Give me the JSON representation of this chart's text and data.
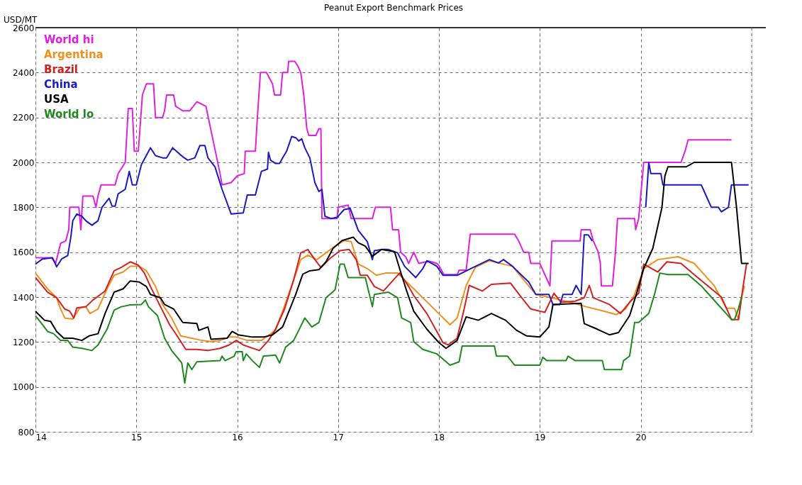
{
  "chart_data": {
    "type": "line",
    "title": "Peanut Export Benchmark Prices",
    "ylabel": "USD/MT",
    "xlim": [
      14,
      21.1
    ],
    "xticks": [
      14,
      15,
      16,
      17,
      18,
      19,
      20
    ],
    "ylim": [
      800,
      2600
    ],
    "yticks": [
      800,
      1000,
      1200,
      1400,
      1600,
      1800,
      2000,
      2200,
      2400,
      2600
    ],
    "grid": true,
    "legend": "top left",
    "marker": "none",
    "line_style": "solid",
    "series": [
      {
        "name": "World hi",
        "color": "#e020e0",
        "x": [
          14.0,
          14.16,
          14.2,
          14.25,
          14.3,
          14.33,
          14.34,
          14.43,
          14.45,
          14.47,
          14.57,
          14.6,
          14.62,
          14.65,
          14.79,
          14.82,
          14.89,
          14.92,
          14.96,
          14.98,
          15.02,
          15.06,
          15.1,
          15.17,
          15.19,
          15.26,
          15.28,
          15.3,
          15.37,
          15.39,
          15.46,
          15.53,
          15.6,
          15.69,
          15.76,
          15.83,
          15.85,
          15.94,
          16.0,
          16.07,
          16.08,
          16.18,
          16.2,
          16.23,
          16.29,
          16.35,
          16.37,
          16.43,
          16.45,
          16.5,
          16.51,
          16.57,
          16.6,
          16.63,
          16.66,
          16.69,
          16.71,
          16.78,
          16.81,
          16.83,
          16.84,
          16.99,
          17.0,
          17.1,
          17.13,
          17.34,
          17.37,
          17.52,
          17.54,
          17.6,
          17.62,
          17.67,
          17.7,
          17.75,
          17.8,
          17.9,
          17.98,
          18.0,
          18.05,
          18.18,
          18.2,
          18.27,
          18.29,
          18.31,
          18.75,
          18.79,
          18.84,
          18.89,
          18.91,
          19.0,
          19.05,
          19.1,
          19.12,
          19.4,
          19.41,
          19.5,
          19.53,
          19.58,
          19.6,
          19.61,
          19.72,
          19.75,
          19.77,
          19.94,
          19.95,
          19.98,
          20.03,
          20.4,
          20.44,
          20.47,
          20.9
        ],
        "values": [
          1575,
          1575,
          1550,
          1640,
          1650,
          1700,
          1800,
          1800,
          1700,
          1850,
          1850,
          1800,
          1850,
          1900,
          1900,
          1950,
          2000,
          2240,
          2240,
          2050,
          2050,
          2300,
          2350,
          2350,
          2200,
          2200,
          2230,
          2300,
          2300,
          2250,
          2230,
          2230,
          2270,
          2250,
          2100,
          1950,
          1900,
          1910,
          1940,
          1950,
          2050,
          2050,
          2200,
          2400,
          2400,
          2350,
          2300,
          2300,
          2400,
          2400,
          2450,
          2450,
          2430,
          2400,
          2300,
          2150,
          2120,
          2120,
          2150,
          2150,
          1750,
          1750,
          1800,
          1810,
          1750,
          1750,
          1800,
          1800,
          1700,
          1700,
          1600,
          1580,
          1550,
          1600,
          1550,
          1560,
          1550,
          1540,
          1500,
          1500,
          1520,
          1520,
          1600,
          1680,
          1680,
          1650,
          1600,
          1600,
          1550,
          1550,
          1500,
          1450,
          1650,
          1650,
          1700,
          1700,
          1650,
          1600,
          1550,
          1450,
          1450,
          1600,
          1750,
          1750,
          1700,
          1750,
          2000,
          2000,
          2050,
          2100,
          2100
        ]
      },
      {
        "name": "Argentina",
        "color": "#f0901e",
        "x": [
          14.0,
          14.12,
          14.21,
          14.24,
          14.29,
          14.37,
          14.44,
          14.5,
          14.54,
          14.62,
          14.71,
          14.78,
          14.87,
          14.94,
          15.03,
          15.1,
          15.19,
          15.26,
          15.35,
          15.44,
          15.55,
          15.65,
          15.74,
          15.83,
          15.92,
          15.99,
          16.1,
          16.24,
          16.38,
          16.49,
          16.56,
          16.63,
          16.7,
          16.79,
          16.88,
          16.97,
          17.06,
          17.13,
          17.2,
          17.29,
          17.38,
          17.47,
          17.59,
          17.68,
          17.75,
          17.93,
          18.11,
          18.18,
          18.27,
          18.36,
          18.5,
          18.73,
          18.82,
          18.96,
          19.12,
          19.3,
          19.46,
          19.64,
          19.76,
          19.85,
          19.94,
          20.03,
          20.17,
          20.37,
          20.53,
          20.73,
          20.85,
          20.93,
          20.97,
          21.0,
          21.03
        ],
        "values": [
          1507,
          1437,
          1397,
          1357,
          1307,
          1302,
          1352,
          1357,
          1327,
          1347,
          1437,
          1497,
          1512,
          1537,
          1537,
          1517,
          1447,
          1367,
          1307,
          1227,
          1217,
          1207,
          1202,
          1207,
          1222,
          1222,
          1207,
          1207,
          1252,
          1387,
          1477,
          1567,
          1587,
          1567,
          1597,
          1627,
          1652,
          1647,
          1547,
          1527,
          1497,
          1507,
          1507,
          1467,
          1437,
          1357,
          1277,
          1307,
          1452,
          1532,
          1562,
          1537,
          1487,
          1412,
          1397,
          1377,
          1357,
          1337,
          1322,
          1347,
          1412,
          1527,
          1567,
          1580,
          1550,
          1450,
          1350,
          1350,
          1300,
          1400,
          1450
        ]
      },
      {
        "name": "Brazil",
        "color": "#d42020",
        "x": [
          14.0,
          14.12,
          14.21,
          14.29,
          14.34,
          14.38,
          14.41,
          14.5,
          14.57,
          14.69,
          14.78,
          14.85,
          14.94,
          15.02,
          15.08,
          15.14,
          15.24,
          15.33,
          15.42,
          15.49,
          15.6,
          15.71,
          15.83,
          15.92,
          15.99,
          16.06,
          16.22,
          16.31,
          16.38,
          16.47,
          16.56,
          16.63,
          16.7,
          16.77,
          16.83,
          16.92,
          17.02,
          17.11,
          17.18,
          17.22,
          17.29,
          17.36,
          17.45,
          17.61,
          17.7,
          17.75,
          17.88,
          18.04,
          18.09,
          18.18,
          18.25,
          18.3,
          18.43,
          18.52,
          18.71,
          18.82,
          18.91,
          19.05,
          19.14,
          19.21,
          19.35,
          19.44,
          19.49,
          19.53,
          19.69,
          19.8,
          19.89,
          19.98,
          20.03,
          20.17,
          20.26,
          20.4,
          20.53,
          20.8,
          20.9,
          20.97,
          21.0,
          21.05
        ],
        "values": [
          1487,
          1422,
          1397,
          1347,
          1337,
          1307,
          1352,
          1357,
          1387,
          1427,
          1517,
          1532,
          1557,
          1542,
          1507,
          1447,
          1357,
          1277,
          1217,
          1167,
          1167,
          1162,
          1172,
          1187,
          1207,
          1187,
          1162,
          1207,
          1257,
          1347,
          1477,
          1597,
          1612,
          1567,
          1532,
          1572,
          1607,
          1612,
          1567,
          1497,
          1497,
          1447,
          1427,
          1507,
          1447,
          1407,
          1327,
          1197,
          1187,
          1217,
          1347,
          1452,
          1427,
          1457,
          1462,
          1397,
          1347,
          1332,
          1417,
          1377,
          1382,
          1397,
          1452,
          1397,
          1367,
          1327,
          1377,
          1417,
          1547,
          1512,
          1557,
          1550,
          1500,
          1400,
          1300,
          1300,
          1400,
          1550
        ]
      },
      {
        "name": "China",
        "color": "#1a1ac0",
        "x": [
          14.0,
          14.07,
          14.17,
          14.21,
          14.26,
          14.32,
          14.35,
          14.37,
          14.41,
          14.46,
          14.5,
          14.56,
          14.62,
          14.66,
          14.73,
          14.76,
          14.79,
          14.82,
          14.89,
          14.93,
          14.96,
          15.0,
          15.05,
          15.14,
          15.19,
          15.26,
          15.3,
          15.36,
          15.46,
          15.51,
          15.58,
          15.63,
          15.68,
          15.71,
          15.78,
          15.85,
          15.94,
          16.06,
          16.1,
          16.18,
          16.24,
          16.3,
          16.31,
          16.33,
          16.38,
          16.42,
          16.45,
          16.49,
          16.54,
          16.58,
          16.61,
          16.64,
          16.67,
          16.72,
          16.77,
          16.81,
          16.84,
          16.87,
          16.93,
          16.99,
          17.06,
          17.12,
          17.2,
          17.29,
          17.34,
          17.36,
          17.43,
          17.5,
          17.59,
          17.66,
          17.77,
          17.84,
          17.88,
          17.98,
          18.04,
          18.18,
          18.34,
          18.5,
          18.59,
          18.64,
          18.73,
          18.82,
          18.89,
          18.96,
          19.09,
          19.13,
          19.2,
          19.23,
          19.32,
          19.36,
          19.41,
          19.44,
          19.48,
          19.52,
          19.97,
          20.05,
          20.08,
          20.1,
          20.2,
          20.22,
          20.6,
          20.65,
          20.7,
          20.77,
          20.8,
          20.87,
          20.9,
          21.07
        ],
        "values": [
          1547,
          1570,
          1575,
          1535,
          1570,
          1585,
          1665,
          1740,
          1770,
          1760,
          1740,
          1720,
          1740,
          1800,
          1840,
          1805,
          1805,
          1860,
          1880,
          1960,
          1900,
          1900,
          1990,
          2065,
          2030,
          2020,
          2020,
          2065,
          2025,
          2010,
          2020,
          2075,
          2075,
          2020,
          1980,
          1880,
          1770,
          1775,
          1855,
          1855,
          1960,
          1970,
          2045,
          2010,
          1995,
          1995,
          2020,
          2050,
          2115,
          2110,
          2095,
          2105,
          2065,
          2020,
          1910,
          1870,
          1880,
          1760,
          1750,
          1755,
          1790,
          1795,
          1697,
          1647,
          1567,
          1607,
          1612,
          1612,
          1597,
          1537,
          1487,
          1527,
          1562,
          1537,
          1497,
          1497,
          1532,
          1567,
          1552,
          1567,
          1537,
          1497,
          1467,
          1412,
          1412,
          1367,
          1367,
          1412,
          1412,
          1452,
          1412,
          1677,
          1677,
          1650,
          null,
          1800,
          2000,
          1950,
          1950,
          1900,
          1900,
          1850,
          1800,
          1800,
          1780,
          1800,
          1900,
          1900
        ]
      },
      {
        "name": "USA",
        "color": "#000000",
        "x": [
          14.0,
          14.09,
          14.15,
          14.21,
          14.28,
          14.37,
          14.46,
          14.53,
          14.62,
          14.69,
          14.78,
          14.87,
          14.94,
          15.03,
          15.1,
          15.14,
          15.24,
          15.28,
          15.37,
          15.46,
          15.6,
          15.62,
          15.71,
          15.74,
          15.9,
          15.95,
          16.01,
          16.15,
          16.26,
          16.35,
          16.45,
          16.54,
          16.58,
          16.65,
          16.72,
          16.81,
          16.88,
          16.95,
          17.04,
          17.15,
          17.2,
          17.27,
          17.34,
          17.43,
          17.56,
          17.61,
          17.68,
          17.75,
          17.88,
          18.0,
          18.07,
          18.18,
          18.27,
          18.39,
          18.52,
          18.66,
          18.77,
          18.87,
          19.0,
          19.09,
          19.13,
          19.41,
          19.44,
          19.57,
          19.69,
          19.78,
          19.89,
          19.96,
          20.03,
          20.12,
          20.21,
          20.24,
          20.27,
          20.45,
          20.53,
          20.9,
          20.95,
          21.0,
          21.07
        ],
        "values": [
          1337,
          1297,
          1292,
          1247,
          1217,
          1217,
          1207,
          1227,
          1237,
          1327,
          1422,
          1437,
          1472,
          1467,
          1447,
          1412,
          1397,
          1367,
          1347,
          1287,
          1282,
          1252,
          1267,
          1212,
          1217,
          1247,
          1232,
          1222,
          1222,
          1232,
          1267,
          1367,
          1412,
          1502,
          1517,
          1522,
          1557,
          1617,
          1652,
          1667,
          1642,
          1627,
          1582,
          1612,
          1602,
          1527,
          1427,
          1337,
          1257,
          1197,
          1172,
          1207,
          1312,
          1297,
          1327,
          1297,
          1252,
          1227,
          1222,
          1267,
          1367,
          1372,
          1282,
          1257,
          1232,
          1242,
          1317,
          1417,
          1527,
          1617,
          1797,
          1940,
          1980,
          1980,
          2000,
          2000,
          1800,
          1550,
          1550
        ]
      },
      {
        "name": "World lo",
        "color": "#1e8a1e",
        "x": [
          14.0,
          14.07,
          14.12,
          14.18,
          14.25,
          14.32,
          14.37,
          14.46,
          14.56,
          14.62,
          14.71,
          14.78,
          14.85,
          14.94,
          15.05,
          15.09,
          15.12,
          15.21,
          15.28,
          15.35,
          15.45,
          15.48,
          15.51,
          15.55,
          15.6,
          15.83,
          15.85,
          15.88,
          15.97,
          15.99,
          16.05,
          16.06,
          16.09,
          16.15,
          16.22,
          16.26,
          16.38,
          16.42,
          16.48,
          16.56,
          16.61,
          16.67,
          16.74,
          16.81,
          16.88,
          16.97,
          17.02,
          17.06,
          17.1,
          17.27,
          17.34,
          17.36,
          17.5,
          17.59,
          17.63,
          17.72,
          17.75,
          17.84,
          17.98,
          18.11,
          18.2,
          18.23,
          18.55,
          18.57,
          18.68,
          18.75,
          19.0,
          19.03,
          19.07,
          19.26,
          19.28,
          19.35,
          19.62,
          19.64,
          19.81,
          19.83,
          19.89,
          19.94,
          19.98,
          20.08,
          20.14,
          20.19,
          20.27,
          20.47,
          20.6,
          20.7,
          20.9,
          20.93,
          20.97,
          21.0
        ],
        "values": [
          1317,
          1277,
          1247,
          1237,
          1207,
          1207,
          1177,
          1172,
          1162,
          1187,
          1257,
          1342,
          1357,
          1365,
          1367,
          1387,
          1357,
          1317,
          1217,
          1162,
          1107,
          1017,
          1107,
          1077,
          1112,
          1117,
          1137,
          1117,
          1137,
          1157,
          1157,
          1117,
          1147,
          1117,
          1087,
          1137,
          1142,
          1107,
          1177,
          1207,
          1252,
          1307,
          1267,
          1287,
          1397,
          1432,
          1547,
          1547,
          1487,
          1487,
          1357,
          1412,
          1422,
          1397,
          1307,
          1287,
          1202,
          1167,
          1147,
          1097,
          1112,
          1182,
          1182,
          1137,
          1137,
          1097,
          1097,
          1132,
          1117,
          1117,
          1137,
          1117,
          1117,
          1077,
          1077,
          1117,
          1137,
          1287,
          1287,
          1327,
          1417,
          1507,
          1500,
          1500,
          1450,
          1400,
          1300,
          1300,
          1350,
          1400
        ]
      }
    ]
  }
}
